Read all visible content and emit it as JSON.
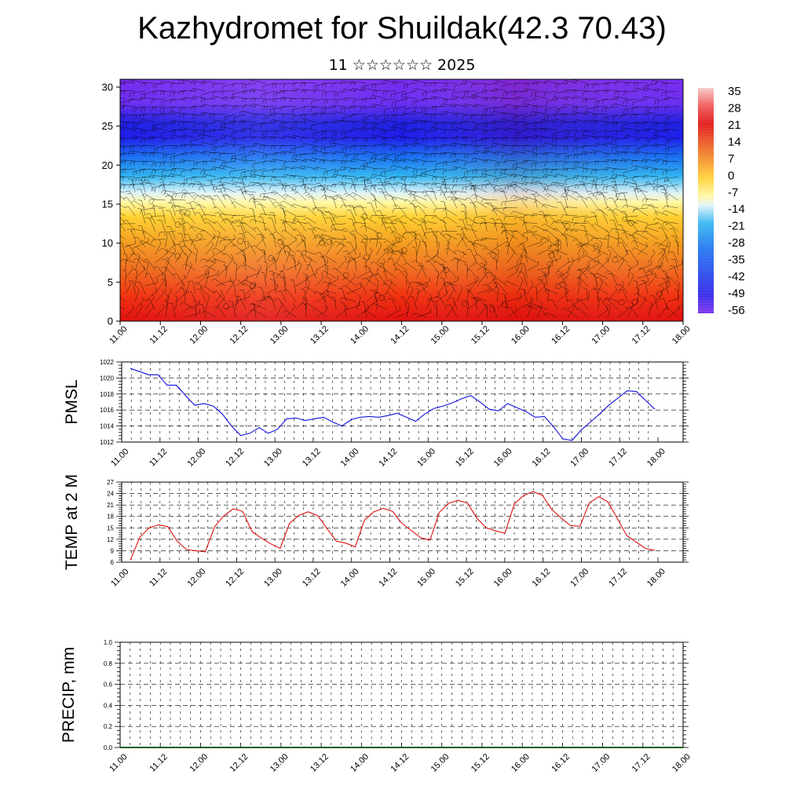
{
  "title": "Kazhydromet for Shuildak(42.3 70.43)",
  "subtitle": "11 ☆☆☆☆☆☆ 2025",
  "chart_data": [
    {
      "type": "heatmap",
      "description_levels_y": [
        0,
        5,
        10,
        15,
        20,
        25,
        30
      ],
      "ylim": [
        0,
        31
      ],
      "x_ticks": [
        "11.00",
        "11.12",
        "12.00",
        "12.12",
        "13.00",
        "13.12",
        "14.00",
        "14.12",
        "15.00",
        "15.12",
        "16.00",
        "16.12",
        "17.00",
        "17.12",
        "18.00"
      ],
      "colorbar_labels": [
        "35",
        "28",
        "21",
        "14",
        "7",
        "0",
        "-7",
        "-14",
        "-21",
        "-28",
        "-35",
        "-42",
        "-49",
        "-56"
      ],
      "colors": {
        "top": "#7a2cf0",
        "blue": "#1e1eea",
        "light_blue": "#30b4f0",
        "pale": "#ffffc8",
        "yellow": "#ffd030",
        "orange": "#f08020",
        "red": "#e01010"
      }
    },
    {
      "type": "line",
      "ylabel": "PMSL",
      "ylim": [
        1012,
        1022
      ],
      "y_ticks": [
        "1012",
        "1014",
        "1016",
        "1018",
        "1020",
        "1022"
      ],
      "x_ticks": [
        "11.00",
        "11.12",
        "12.00",
        "12.12",
        "13.00",
        "13.12",
        "14.00",
        "14.12",
        "15.00",
        "15.12",
        "16.00",
        "16.12",
        "17.00",
        "17.12",
        "18.00"
      ],
      "color": "#1010e0",
      "values": [
        1021.2,
        1020.8,
        1020.4,
        1020.4,
        1019.1,
        1019.1,
        1017.8,
        1016.6,
        1016.8,
        1016.5,
        1015.5,
        1014.0,
        1012.8,
        1013.1,
        1013.8,
        1013.1,
        1013.6,
        1014.9,
        1015.0,
        1014.7,
        1014.9,
        1015.1,
        1014.5,
        1014.0,
        1014.8,
        1015.1,
        1015.2,
        1015.1,
        1015.3,
        1015.6,
        1015.1,
        1014.6,
        1015.5,
        1016.2,
        1016.5,
        1016.9,
        1017.4,
        1017.8,
        1017.0,
        1016.1,
        1015.9,
        1016.8,
        1016.3,
        1015.8,
        1015.1,
        1015.2,
        1013.9,
        1012.4,
        1012.2,
        1013.5,
        1014.5,
        1015.5,
        1016.6,
        1017.5,
        1018.4,
        1018.3,
        1017.2,
        1016.1
      ]
    },
    {
      "type": "line",
      "ylabel": "TEMP at 2 M",
      "ylim": [
        6,
        27
      ],
      "y_ticks": [
        "6",
        "9",
        "12",
        "15",
        "18",
        "21",
        "24",
        "27"
      ],
      "x_ticks": [
        "11.00",
        "11.12",
        "12.00",
        "12.12",
        "13.00",
        "13.12",
        "14.00",
        "14.12",
        "15.00",
        "15.12",
        "16.00",
        "16.12",
        "17.00",
        "17.12",
        "18.00"
      ],
      "color": "#e01010",
      "values": [
        6.5,
        12.5,
        15.0,
        15.8,
        15.3,
        11.5,
        9.3,
        9.0,
        8.7,
        15.3,
        18.2,
        20.0,
        19.3,
        14.0,
        12.3,
        10.8,
        9.6,
        16.2,
        18.3,
        19.2,
        18.2,
        14.8,
        11.5,
        11.0,
        10.0,
        17.0,
        19.2,
        20.1,
        19.3,
        16.2,
        14.3,
        12.4,
        11.8,
        19.1,
        21.5,
        22.2,
        21.5,
        17.5,
        15.0,
        14.2,
        13.6,
        21.3,
        23.5,
        24.5,
        23.5,
        19.8,
        17.6,
        15.6,
        15.4,
        21.5,
        23.2,
        21.8,
        17.4,
        13.0,
        11.3,
        9.6,
        9.1
      ]
    },
    {
      "type": "bar",
      "ylabel": "PRECIP, mm",
      "ylim": [
        0,
        1
      ],
      "y_ticks": [
        "0.0",
        "0.2",
        "0.4",
        "0.6",
        "0.8",
        "1.0"
      ],
      "x_ticks": [
        "11.00",
        "11.12",
        "12.00",
        "12.12",
        "13.00",
        "13.12",
        "14.00",
        "14.12",
        "15.00",
        "15.12",
        "16.00",
        "16.12",
        "17.00",
        "17.12",
        "18.00"
      ],
      "values": [
        0,
        0,
        0,
        0,
        0,
        0,
        0,
        0,
        0,
        0,
        0,
        0,
        0,
        0,
        0
      ]
    }
  ]
}
